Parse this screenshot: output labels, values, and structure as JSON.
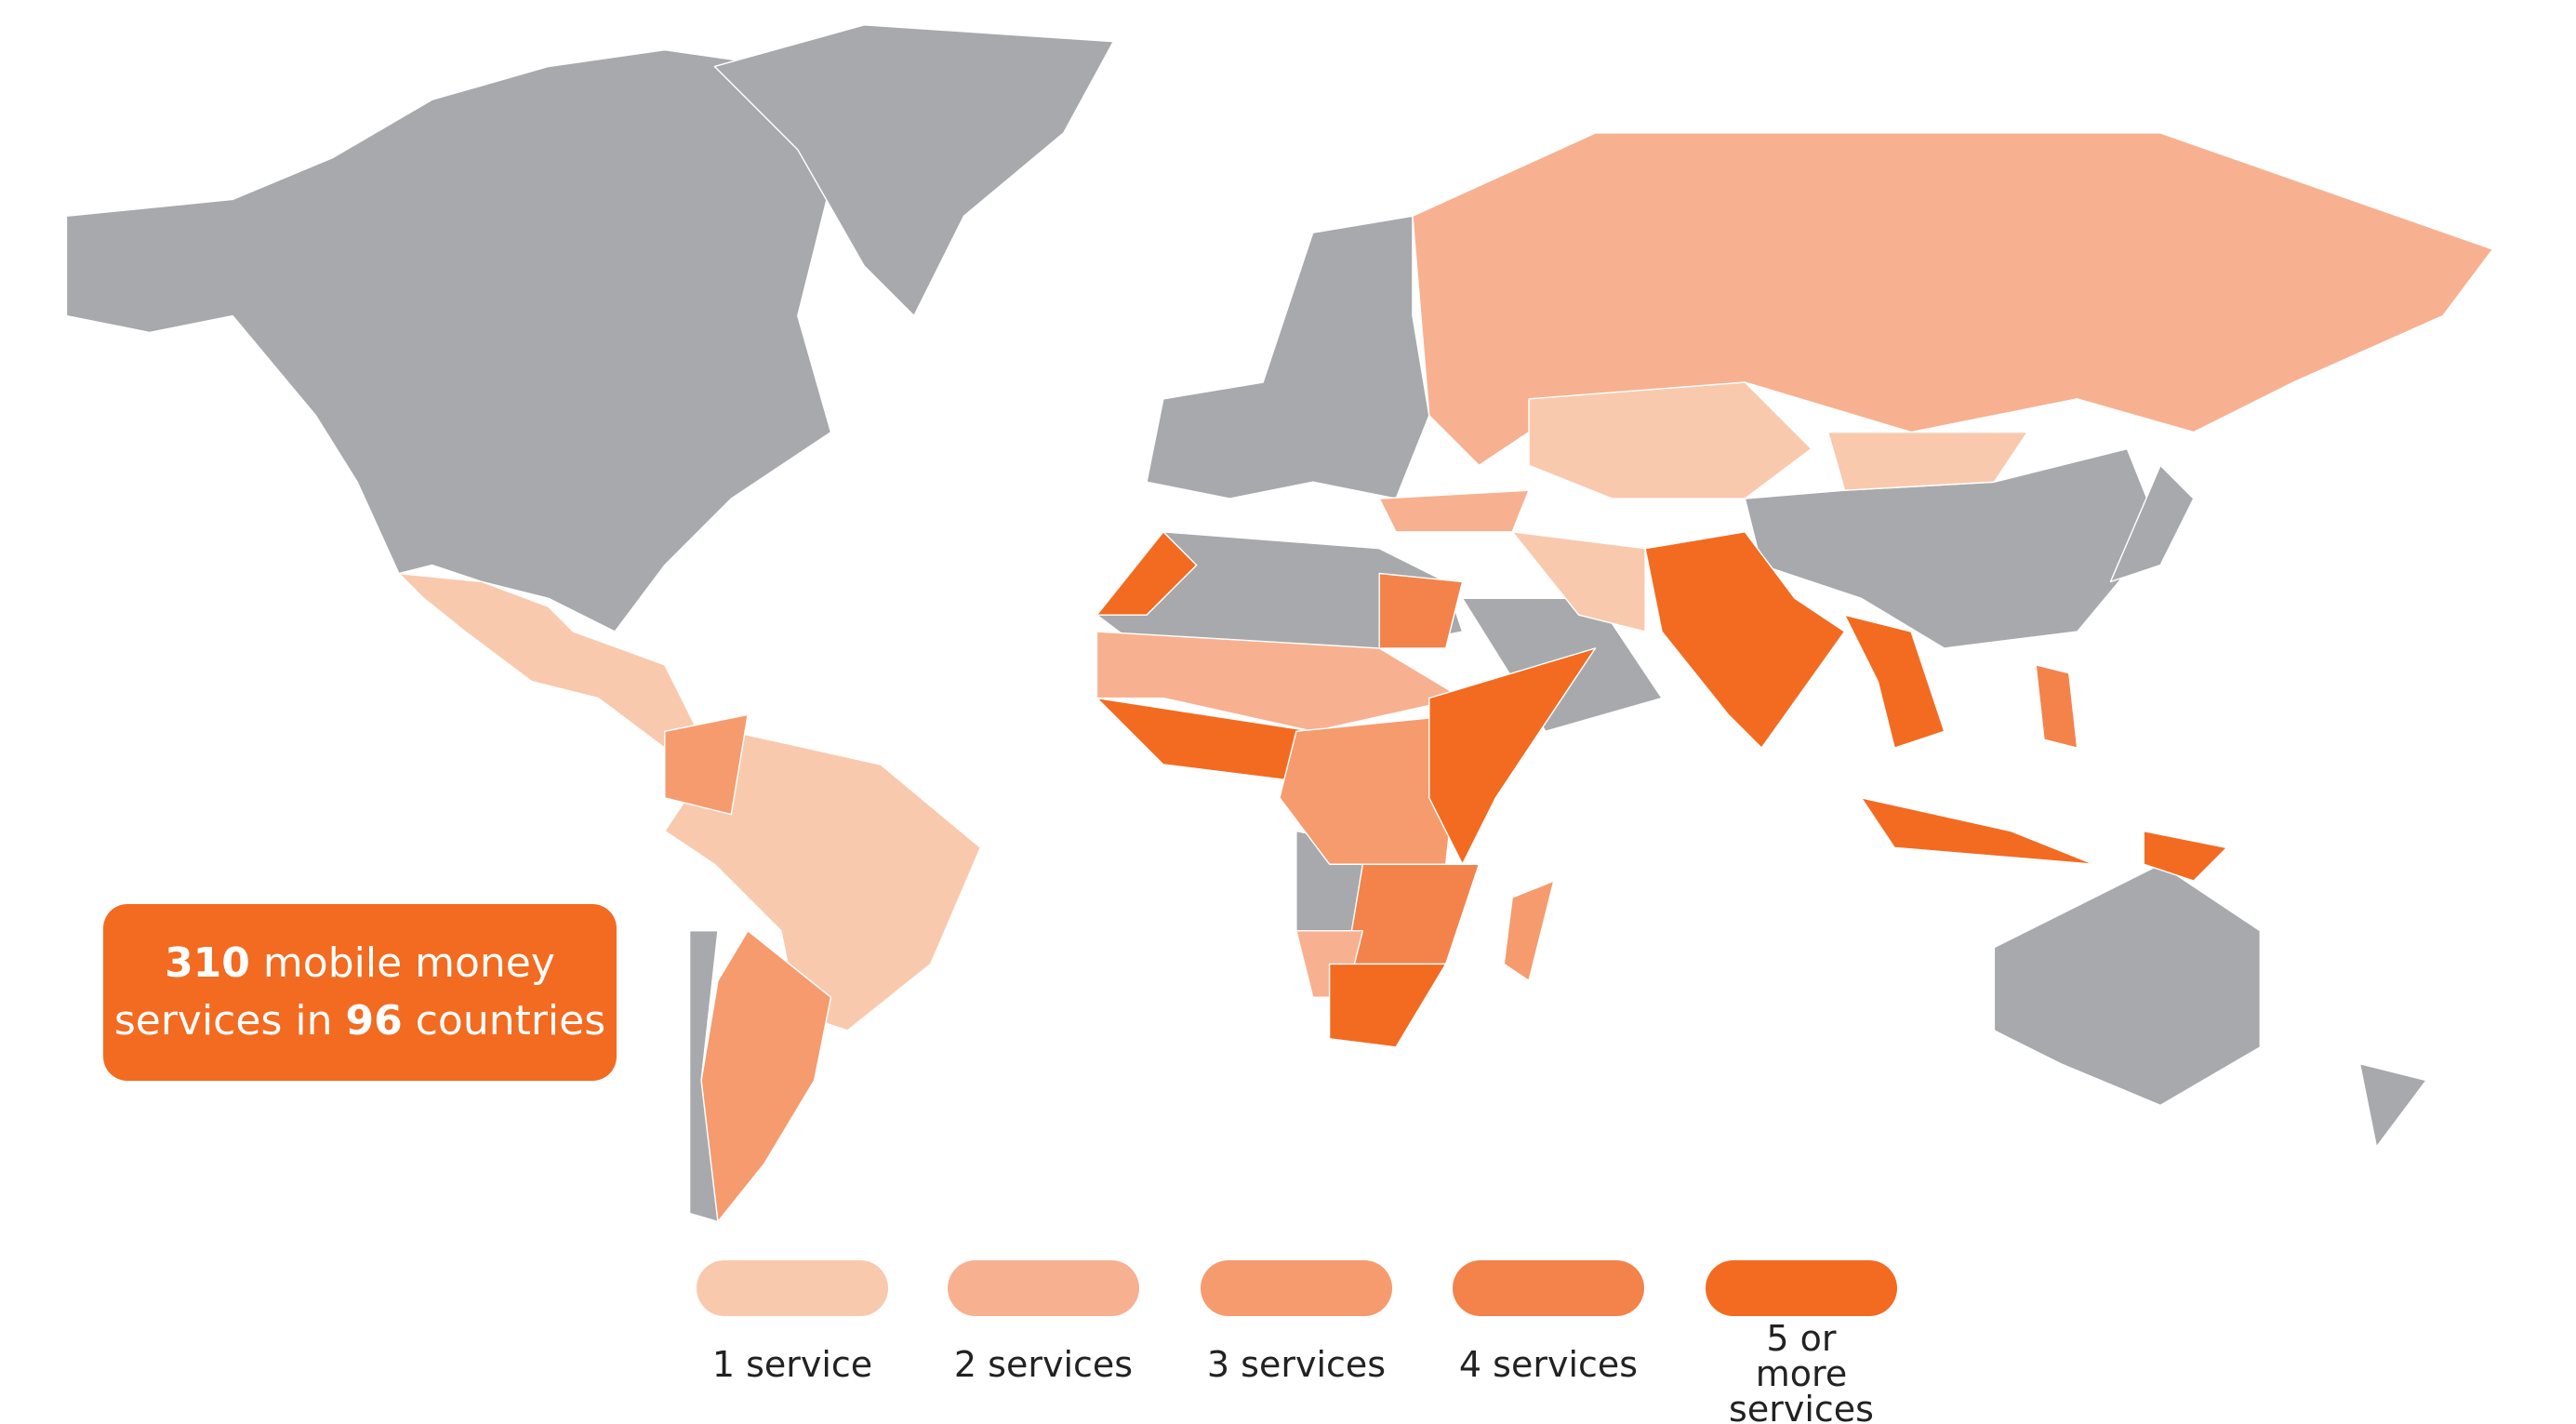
{
  "callout": {
    "count": "310",
    "line1": "mobile money",
    "line2": "services in",
    "countries": "96",
    "line2_end": "countries"
  },
  "legend": [
    {
      "label": "1 service",
      "color": "#f9c9ae"
    },
    {
      "label": "2 services",
      "color": "#f7b190"
    },
    {
      "label": "3 services",
      "color": "#f59b6e"
    },
    {
      "label": "4 services",
      "color": "#f3834b"
    },
    {
      "label": "5 or more services",
      "color": "#f26b21"
    }
  ],
  "land_color": "#a7a9ac"
}
